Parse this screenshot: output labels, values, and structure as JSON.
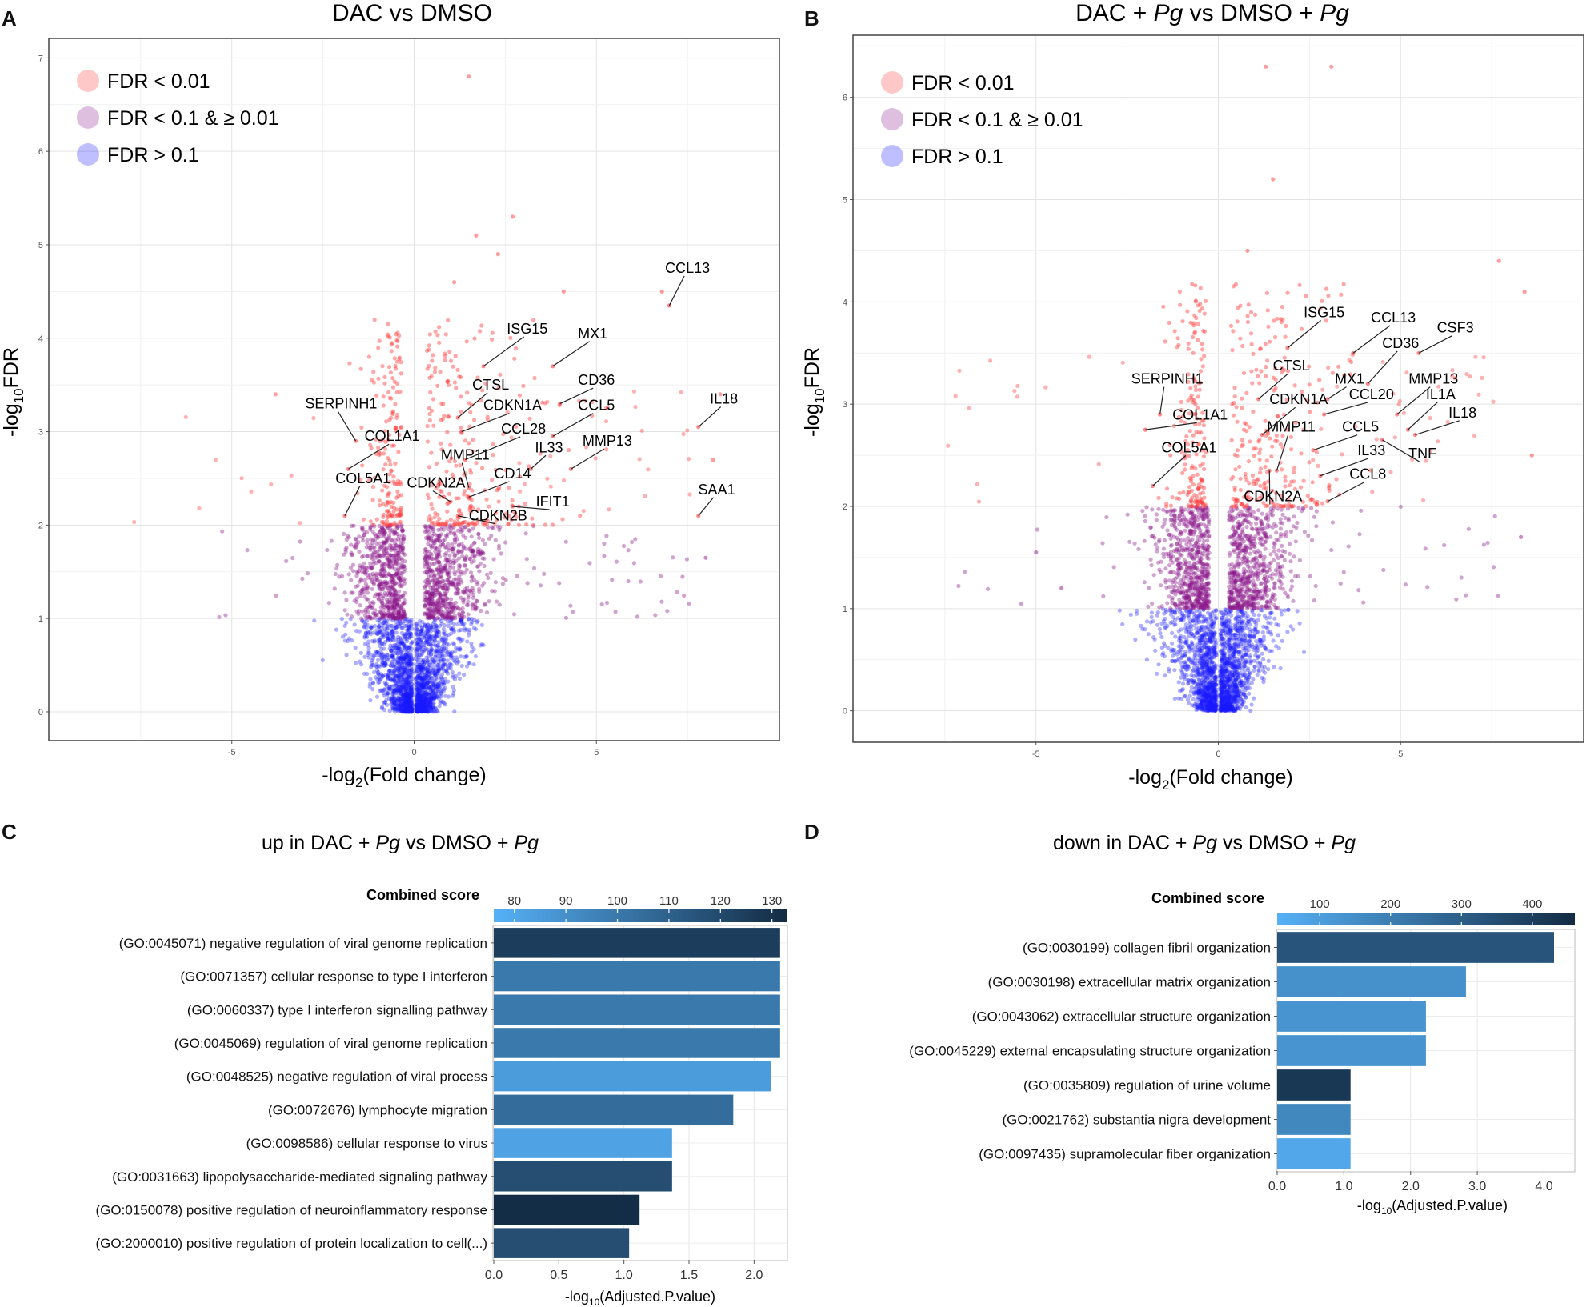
{
  "panel_letters": [
    "A",
    "B",
    "C",
    "D"
  ],
  "colors": {
    "fdr_lt_001": "#ff3b3b",
    "fdr_mid": "#8b1a8b",
    "fdr_gt_01": "#1a1aff",
    "bar_scale": [
      "#56b1f7",
      "#132b43"
    ]
  },
  "chart_data": [
    {
      "type": "scatter",
      "panel": "A",
      "title": "DAC vs DMSO",
      "xlabel_main": "-log",
      "xlabel_sub": "2",
      "xlabel_rest": "(Fold change)",
      "ylabel_main": "-log",
      "ylabel_sub": "10",
      "ylabel_rest": "FDR",
      "xlim": [
        -10,
        10
      ],
      "ylim": [
        -0.3,
        7.2
      ],
      "xticks": [
        -5,
        0,
        5
      ],
      "xtick_labels": [
        "-5",
        "0",
        "5"
      ],
      "yticks": [
        0,
        1,
        2,
        3,
        4,
        5,
        6,
        7
      ],
      "ytick_labels": [
        "0",
        "1",
        "2",
        "3",
        "4",
        "5",
        "6",
        "7"
      ],
      "thresholds": {
        "fdr_0_01": 2,
        "fdr_0_1": 1
      },
      "legend": [
        "FDR < 0.01",
        "FDR < 0.1 & ≥ 0.01",
        "FDR > 0.1"
      ],
      "legend_position": "top-left",
      "labeled_genes": [
        {
          "name": "CCL13",
          "x": 7.0,
          "y": 4.35,
          "lx": 7.5,
          "ly": 4.7
        },
        {
          "name": "IL18",
          "x": 7.8,
          "y": 3.05,
          "lx": 8.5,
          "ly": 3.3
        },
        {
          "name": "SAA1",
          "x": 7.8,
          "y": 2.1,
          "lx": 8.3,
          "ly": 2.33
        },
        {
          "name": "ISG15",
          "x": 1.9,
          "y": 3.7,
          "lx": 3.1,
          "ly": 4.05
        },
        {
          "name": "MX1",
          "x": 3.8,
          "y": 3.7,
          "lx": 4.9,
          "ly": 4.0
        },
        {
          "name": "CTSL",
          "x": 1.2,
          "y": 3.15,
          "lx": 2.1,
          "ly": 3.45
        },
        {
          "name": "CD36",
          "x": 4.0,
          "y": 3.3,
          "lx": 5.0,
          "ly": 3.5
        },
        {
          "name": "CDKN1A",
          "x": 1.3,
          "y": 3.0,
          "lx": 2.7,
          "ly": 3.23
        },
        {
          "name": "CCL5",
          "x": 3.8,
          "y": 2.95,
          "lx": 5.0,
          "ly": 3.23
        },
        {
          "name": "CCL28",
          "x": 1.4,
          "y": 2.7,
          "lx": 3.0,
          "ly": 2.98
        },
        {
          "name": "MMP13",
          "x": 4.3,
          "y": 2.6,
          "lx": 5.3,
          "ly": 2.85
        },
        {
          "name": "IL33",
          "x": 3.2,
          "y": 2.6,
          "lx": 3.7,
          "ly": 2.78
        },
        {
          "name": "MMP11",
          "x": 1.5,
          "y": 2.4,
          "lx": 1.4,
          "ly": 2.7
        },
        {
          "name": "CD14",
          "x": 1.5,
          "y": 2.3,
          "lx": 2.7,
          "ly": 2.5
        },
        {
          "name": "CDKN2A",
          "x": 1.0,
          "y": 2.25,
          "lx": 0.6,
          "ly": 2.4
        },
        {
          "name": "IFIT1",
          "x": 2.7,
          "y": 2.2,
          "lx": 3.8,
          "ly": 2.2
        },
        {
          "name": "CDKN2B",
          "x": 1.2,
          "y": 2.1,
          "lx": 2.3,
          "ly": 2.05
        },
        {
          "name": "SERPINH1",
          "x": -1.6,
          "y": 2.9,
          "lx": -2.0,
          "ly": 3.25
        },
        {
          "name": "COL1A1",
          "x": -1.8,
          "y": 2.6,
          "lx": -0.6,
          "ly": 2.9
        },
        {
          "name": "COL5A1",
          "x": -1.9,
          "y": 2.1,
          "lx": -1.4,
          "ly": 2.45
        }
      ],
      "extra_points": [
        {
          "x": 1.5,
          "y": 6.8
        },
        {
          "x": 2.7,
          "y": 5.3
        },
        {
          "x": 1.7,
          "y": 5.1
        },
        {
          "x": 2.3,
          "y": 4.9
        },
        {
          "x": 1.1,
          "y": 4.6
        },
        {
          "x": 4.1,
          "y": 4.5
        },
        {
          "x": 6.8,
          "y": 4.5
        },
        {
          "x": 8.4,
          "y": 3.4
        },
        {
          "x": 8.2,
          "y": 2.7
        },
        {
          "x": 8.0,
          "y": 1.65
        },
        {
          "x": -3.8,
          "y": 3.4
        }
      ]
    },
    {
      "type": "scatter",
      "panel": "B",
      "title_parts": [
        "DAC + ",
        "Pg",
        " vs DMSO + ",
        "Pg"
      ],
      "xlabel_main": "-log",
      "xlabel_sub": "2",
      "xlabel_rest": "(Fold change)",
      "ylabel_main": "-log",
      "ylabel_sub": "10",
      "ylabel_rest": "FDR",
      "xlim": [
        -10,
        10
      ],
      "ylim": [
        -0.3,
        6.6
      ],
      "xticks": [
        -5,
        0,
        5
      ],
      "xtick_labels": [
        "-5",
        "0",
        "5"
      ],
      "yticks": [
        0,
        1,
        2,
        3,
        4,
        5,
        6
      ],
      "ytick_labels": [
        "0",
        "1",
        "2",
        "3",
        "4",
        "5",
        "6"
      ],
      "thresholds": {
        "fdr_0_01": 2,
        "fdr_0_1": 1
      },
      "legend": [
        "FDR < 0.01",
        "FDR < 0.1 & ≥ 0.01",
        "FDR > 0.1"
      ],
      "legend_position": "top-left",
      "labeled_genes": [
        {
          "name": "ISG15",
          "x": 1.9,
          "y": 3.55,
          "lx": 2.9,
          "ly": 3.85
        },
        {
          "name": "CCL13",
          "x": 3.7,
          "y": 3.5,
          "lx": 4.8,
          "ly": 3.8
        },
        {
          "name": "CSF3",
          "x": 5.5,
          "y": 3.5,
          "lx": 6.5,
          "ly": 3.7
        },
        {
          "name": "CD36",
          "x": 4.1,
          "y": 3.2,
          "lx": 5.0,
          "ly": 3.55
        },
        {
          "name": "CTSL",
          "x": 1.1,
          "y": 3.05,
          "lx": 2.0,
          "ly": 3.33
        },
        {
          "name": "MX1",
          "x": 3.0,
          "y": 3.05,
          "lx": 3.6,
          "ly": 3.2
        },
        {
          "name": "MMP13",
          "x": 4.9,
          "y": 2.9,
          "lx": 5.9,
          "ly": 3.2
        },
        {
          "name": "SERPINH1",
          "x": -1.6,
          "y": 2.9,
          "lx": -1.4,
          "ly": 3.2
        },
        {
          "name": "CCL20",
          "x": 2.9,
          "y": 2.9,
          "lx": 4.2,
          "ly": 3.05
        },
        {
          "name": "CDKN1A",
          "x": 1.2,
          "y": 2.7,
          "lx": 2.2,
          "ly": 3.0
        },
        {
          "name": "IL1A",
          "x": 5.2,
          "y": 2.75,
          "lx": 6.1,
          "ly": 3.05
        },
        {
          "name": "IL18",
          "x": 5.4,
          "y": 2.7,
          "lx": 6.7,
          "ly": 2.87
        },
        {
          "name": "COL1A1",
          "x": -2.0,
          "y": 2.75,
          "lx": -0.5,
          "ly": 2.85
        },
        {
          "name": "CCL5",
          "x": 2.6,
          "y": 2.55,
          "lx": 3.9,
          "ly": 2.73
        },
        {
          "name": "MMP11",
          "x": 1.6,
          "y": 2.35,
          "lx": 2.0,
          "ly": 2.73
        },
        {
          "name": "TNF",
          "x": 4.5,
          "y": 2.65,
          "lx": 5.6,
          "ly": 2.47
        },
        {
          "name": "COL5A1",
          "x": -1.8,
          "y": 2.2,
          "lx": -0.8,
          "ly": 2.53
        },
        {
          "name": "IL33",
          "x": 2.8,
          "y": 2.3,
          "lx": 4.2,
          "ly": 2.5
        },
        {
          "name": "CDKN2A",
          "x": 1.4,
          "y": 2.35,
          "lx": 1.5,
          "ly": 2.05
        },
        {
          "name": "CCL8",
          "x": 3.0,
          "y": 2.05,
          "lx": 4.1,
          "ly": 2.27
        }
      ],
      "extra_points": [
        {
          "x": 1.3,
          "y": 6.3
        },
        {
          "x": 3.1,
          "y": 6.3
        },
        {
          "x": 1.5,
          "y": 5.2
        },
        {
          "x": 0.8,
          "y": 4.5
        },
        {
          "x": 8.4,
          "y": 4.1
        },
        {
          "x": 7.7,
          "y": 4.4
        },
        {
          "x": 8.6,
          "y": 2.5
        },
        {
          "x": 8.3,
          "y": 1.7
        },
        {
          "x": -5.0,
          "y": 1.55
        },
        {
          "x": -4.3,
          "y": 1.2
        }
      ]
    },
    {
      "type": "bar",
      "orientation": "horizontal",
      "panel": "C",
      "title_parts": [
        "up in DAC + ",
        "Pg",
        " vs DMSO + ",
        "Pg"
      ],
      "legend_title": "Combined score",
      "color_scale_range": [
        76,
        133
      ],
      "color_ticks": [
        80,
        90,
        100,
        110,
        120,
        130
      ],
      "color_tick_labels": [
        "80",
        "90",
        "100",
        "110",
        "120",
        "130"
      ],
      "xlabel_main": "-log",
      "xlabel_sub": "10",
      "xlabel_rest": "(Adjusted.P.value)",
      "xlim": [
        0,
        2.25
      ],
      "xticks": [
        0,
        0.5,
        1,
        1.5,
        2
      ],
      "xtick_labels": [
        "0.0",
        "0.5",
        "1.0",
        "1.5",
        "2.0"
      ],
      "categories": [
        "(GO:0045071) negative regulation of viral genome replication",
        "(GO:0071357) cellular response to type I interferon",
        "(GO:0060337) type I interferon signalling pathway",
        "(GO:0045069) regulation of viral genome replication",
        "(GO:0048525) negative regulation of viral process",
        "(GO:0072676) lymphocyte migration",
        "(GO:0098586) cellular response to virus",
        "(GO:0031663) lipopolysaccharide-mediated signaling pathway",
        "(GO:0150078) positive regulation of neuroinflammatory response",
        "(GO:2000010) positive regulation of protein localization to cell(...)"
      ],
      "values": [
        2.2,
        2.2,
        2.2,
        2.2,
        2.13,
        1.84,
        1.37,
        1.37,
        1.12,
        1.04
      ],
      "combined_scores": [
        125,
        100,
        100,
        100,
        85,
        105,
        82,
        118,
        132,
        118
      ]
    },
    {
      "type": "bar",
      "orientation": "horizontal",
      "panel": "D",
      "title_parts": [
        "down in DAC + ",
        "Pg",
        " vs DMSO + ",
        "Pg"
      ],
      "legend_title": "Combined score",
      "color_scale_range": [
        40,
        460
      ],
      "color_ticks": [
        100,
        200,
        300,
        400
      ],
      "color_tick_labels": [
        "100",
        "200",
        "300",
        "400"
      ],
      "xlabel_main": "-log",
      "xlabel_sub": "10",
      "xlabel_rest": "(Adjusted.P.value)",
      "xlim": [
        0,
        4.45
      ],
      "xticks": [
        0,
        1,
        2,
        3,
        4
      ],
      "xtick_labels": [
        "0.0",
        "1.0",
        "2.0",
        "3.0",
        "4.0"
      ],
      "categories": [
        "(GO:0030199) collagen fibril organization",
        "(GO:0030198) extracellular matrix organization",
        "(GO:0043062) extracellular structure organization",
        "(GO:0045229) external encapsulating structure organization",
        "(GO:0035809) regulation of urine volume",
        "(GO:0021762) substantia nigra development",
        "(GO:0097435) supramolecular fiber organization"
      ],
      "values": [
        4.15,
        2.83,
        2.23,
        2.23,
        1.1,
        1.1,
        1.1
      ],
      "combined_scores": [
        330,
        140,
        130,
        130,
        420,
        170,
        70
      ]
    }
  ]
}
